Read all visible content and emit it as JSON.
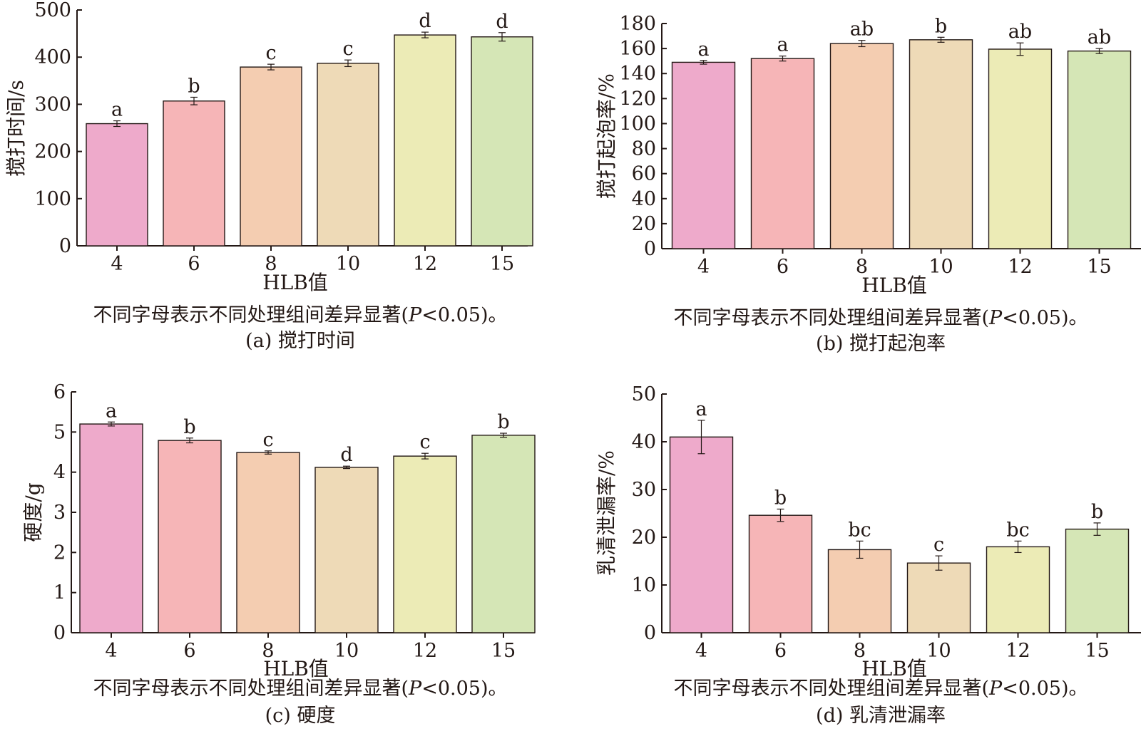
{
  "chart_data": [
    {
      "type": "bar",
      "panel": "a",
      "categories": [
        "4",
        "6",
        "8",
        "10",
        "12",
        "15"
      ],
      "values": [
        259,
        307,
        379,
        387,
        447,
        443
      ],
      "errors": [
        6,
        8,
        6,
        7,
        6,
        9
      ],
      "letters": [
        "a",
        "b",
        "c",
        "c",
        "d",
        "d"
      ],
      "colors": [
        "#eeaacb",
        "#f6b5b7",
        "#f4cdb1",
        "#eedab7",
        "#ecebb6",
        "#d5e6b6"
      ],
      "xlabel": "HLB值",
      "ylabel": "搅打时间/s",
      "ylim": [
        0,
        500
      ],
      "yticks": [
        0,
        100,
        200,
        300,
        400,
        500
      ],
      "note": {
        "before": "不同字母表示不同处理组间差异显著(",
        "italic": "P",
        "after": "<0.05)。"
      },
      "caption": "(a) 搅打时间"
    },
    {
      "type": "bar",
      "panel": "b",
      "categories": [
        "4",
        "6",
        "8",
        "10",
        "12",
        "15"
      ],
      "values": [
        149,
        152,
        164,
        167,
        159.5,
        158
      ],
      "errors": [
        1.5,
        2,
        2.5,
        2,
        5,
        2
      ],
      "letters": [
        "a",
        "a",
        "ab",
        "b",
        "ab",
        "ab"
      ],
      "colors": [
        "#eeaacb",
        "#f6b5b7",
        "#f4cdb1",
        "#eedab7",
        "#ecebb6",
        "#d5e6b6"
      ],
      "xlabel": "HLB值",
      "ylabel": "搅打起泡率/%",
      "ylim": [
        0,
        180
      ],
      "yticks": [
        0,
        20,
        40,
        60,
        80,
        100,
        120,
        140,
        160,
        180
      ],
      "note": {
        "before": "不同字母表示不同处理组间差异显著(",
        "italic": "P",
        "after": "<0.05)。"
      },
      "caption": "(b) 搅打起泡率"
    },
    {
      "type": "bar",
      "panel": "c",
      "categories": [
        "4",
        "6",
        "8",
        "10",
        "12",
        "15"
      ],
      "values": [
        5.2,
        4.79,
        4.49,
        4.12,
        4.4,
        4.92
      ],
      "errors": [
        0.05,
        0.06,
        0.04,
        0.03,
        0.07,
        0.05
      ],
      "letters": [
        "a",
        "b",
        "c",
        "d",
        "c",
        "b"
      ],
      "colors": [
        "#eeaacb",
        "#f6b5b7",
        "#f4cdb1",
        "#eedab7",
        "#ecebb6",
        "#d5e6b6"
      ],
      "xlabel": "HLB值",
      "ylabel": "硬度/g",
      "ylim": [
        0,
        6
      ],
      "yticks": [
        0,
        1,
        2,
        3,
        4,
        5,
        6
      ],
      "note": {
        "before": "不同字母表示不同处理组间差异显著(",
        "italic": "P",
        "after": "<0.05)。"
      },
      "caption": "(c) 硬度"
    },
    {
      "type": "bar",
      "panel": "d",
      "categories": [
        "4",
        "6",
        "8",
        "10",
        "12",
        "15"
      ],
      "values": [
        41,
        24.6,
        17.4,
        14.6,
        18,
        21.7
      ],
      "errors": [
        3.5,
        1.3,
        1.8,
        1.5,
        1.2,
        1.3
      ],
      "letters": [
        "a",
        "b",
        "bc",
        "c",
        "bc",
        "b"
      ],
      "colors": [
        "#eeaacb",
        "#f6b5b7",
        "#f4cdb1",
        "#eedab7",
        "#ecebb6",
        "#d5e6b6"
      ],
      "xlabel": "HLB值",
      "ylabel": "乳清泄漏率/%",
      "ylim": [
        0,
        50
      ],
      "yticks": [
        0,
        10,
        20,
        30,
        40,
        50
      ],
      "note": {
        "before": "不同字母表示不同处理组间差异显著(",
        "italic": "P",
        "after": "<0.05)。"
      },
      "caption": "(d) 乳清泄漏率"
    }
  ]
}
